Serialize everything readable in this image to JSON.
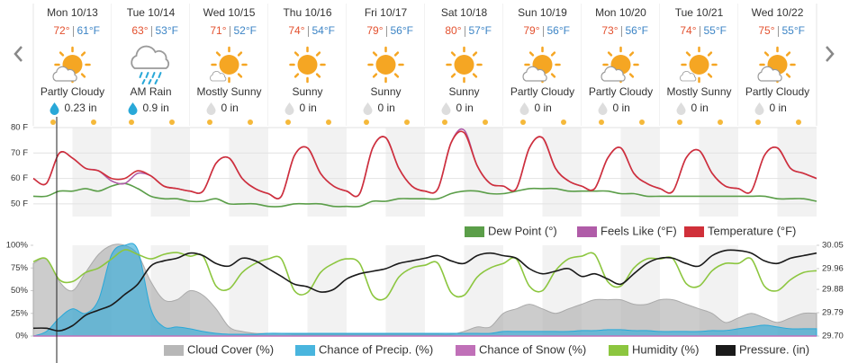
{
  "forecast": [
    {
      "day": "Mon 10/13",
      "high": "72°",
      "low": "61°F",
      "condition": "Partly Cloudy",
      "precip": "0.23 in"
    },
    {
      "day": "Tue 10/14",
      "high": "63°",
      "low": "53°F",
      "condition": "AM Rain",
      "precip": "0.9 in"
    },
    {
      "day": "Wed 10/15",
      "high": "71°",
      "low": "52°F",
      "condition": "Mostly Sunny",
      "precip": "0 in"
    },
    {
      "day": "Thu 10/16",
      "high": "74°",
      "low": "54°F",
      "condition": "Sunny",
      "precip": "0 in"
    },
    {
      "day": "Fri 10/17",
      "high": "79°",
      "low": "56°F",
      "condition": "Sunny",
      "precip": "0 in"
    },
    {
      "day": "Sat 10/18",
      "high": "80°",
      "low": "57°F",
      "condition": "Sunny",
      "precip": "0 in"
    },
    {
      "day": "Sun 10/19",
      "high": "79°",
      "low": "56°F",
      "condition": "Partly Cloudy",
      "precip": "0 in"
    },
    {
      "day": "Mon 10/20",
      "high": "73°",
      "low": "56°F",
      "condition": "Partly Cloudy",
      "precip": "0 in"
    },
    {
      "day": "Tue 10/21",
      "high": "74°",
      "low": "55°F",
      "condition": "Mostly Sunny",
      "precip": "0 in"
    },
    {
      "day": "Wed 10/22",
      "high": "75°",
      "low": "55°F",
      "condition": "Partly Cloudy",
      "precip": "0 in"
    }
  ],
  "chart_data": [
    {
      "type": "line",
      "ylim": [
        45,
        80
      ],
      "grid": true,
      "yticks": [
        {
          "value": 80,
          "label": "80 F"
        },
        {
          "value": 70,
          "label": "70 F"
        },
        {
          "value": 60,
          "label": "60 F"
        },
        {
          "value": 50,
          "label": "50 F"
        }
      ],
      "series": [
        {
          "name": "Dew Point (°)",
          "color": "#5b9e49",
          "values": [
            53,
            53,
            55,
            55,
            56,
            55,
            57,
            58,
            56,
            53,
            52,
            52,
            51,
            51,
            52,
            50,
            50,
            50,
            49,
            49,
            50,
            50,
            50,
            49,
            49,
            49,
            51,
            51,
            52,
            52,
            52,
            52,
            54,
            55,
            55,
            54,
            54,
            55,
            56,
            56,
            56,
            55,
            55,
            55,
            55,
            54,
            54,
            53,
            53,
            53,
            53,
            53,
            53,
            53,
            53,
            53,
            53,
            52,
            52,
            52,
            51
          ]
        },
        {
          "name": "Feels Like (°F)",
          "color": "#b05ca8",
          "values": [
            60,
            58,
            70,
            68,
            64,
            63,
            59,
            58,
            62,
            61,
            57,
            56,
            55,
            55,
            66,
            68,
            60,
            56,
            54,
            53,
            69,
            72,
            62,
            57,
            55,
            54,
            72,
            76,
            64,
            57,
            55,
            56,
            74,
            79,
            65,
            58,
            57,
            56,
            72,
            76,
            64,
            59,
            57,
            56,
            68,
            72,
            62,
            58,
            56,
            55,
            68,
            71,
            62,
            57,
            56,
            55,
            69,
            72,
            64,
            62,
            60
          ]
        },
        {
          "name": "Temperature (°F)",
          "color": "#d0303a",
          "values": [
            60,
            58,
            70,
            68,
            64,
            63,
            60,
            60,
            63,
            61,
            57,
            56,
            55,
            55,
            66,
            68,
            60,
            56,
            54,
            53,
            69,
            72,
            62,
            57,
            55,
            54,
            72,
            76,
            64,
            57,
            55,
            56,
            74,
            78,
            65,
            58,
            57,
            56,
            72,
            76,
            64,
            59,
            57,
            56,
            68,
            72,
            62,
            58,
            56,
            55,
            68,
            71,
            62,
            57,
            56,
            55,
            69,
            72,
            64,
            62,
            60
          ]
        }
      ]
    },
    {
      "type": "line",
      "ylim": [
        0,
        100
      ],
      "y2lim": [
        29.7,
        30.05
      ],
      "yticks": [
        {
          "value": 100,
          "label": "100%"
        },
        {
          "value": 75,
          "label": "75%"
        },
        {
          "value": 50,
          "label": "50%"
        },
        {
          "value": 25,
          "label": "25%"
        },
        {
          "value": 0,
          "label": "0%"
        }
      ],
      "y2ticks": [
        30.05,
        29.96,
        29.88,
        29.79,
        {
          "value": 29.7,
          "label": "29.70"
        }
      ],
      "series": [
        {
          "name": "Cloud Cover (%)",
          "color": "#aaaaaa",
          "area": true,
          "values": [
            80,
            85,
            60,
            50,
            70,
            90,
            100,
            100,
            90,
            60,
            40,
            40,
            50,
            45,
            30,
            10,
            5,
            3,
            3,
            3,
            2,
            2,
            2,
            2,
            2,
            2,
            2,
            2,
            2,
            2,
            2,
            2,
            2,
            5,
            10,
            10,
            25,
            30,
            35,
            30,
            25,
            30,
            35,
            40,
            40,
            40,
            35,
            35,
            40,
            40,
            35,
            30,
            25,
            15,
            20,
            25,
            20,
            15,
            20,
            25,
            25
          ]
        },
        {
          "name": "Chance of Precip. (%)",
          "color": "#29a8d8",
          "area": true,
          "values": [
            0,
            5,
            20,
            30,
            25,
            40,
            90,
            100,
            95,
            30,
            10,
            10,
            8,
            5,
            3,
            2,
            2,
            2,
            3,
            3,
            3,
            3,
            3,
            3,
            3,
            3,
            3,
            3,
            3,
            3,
            3,
            3,
            3,
            3,
            3,
            3,
            5,
            5,
            5,
            5,
            5,
            5,
            6,
            6,
            7,
            7,
            6,
            6,
            5,
            5,
            5,
            5,
            6,
            6,
            8,
            10,
            12,
            10,
            8,
            8,
            8
          ]
        },
        {
          "name": "Chance of Snow (%)",
          "color": "#c070b8",
          "values": [
            0,
            0,
            0,
            0,
            0,
            0,
            0,
            0,
            0,
            0,
            0,
            0,
            0,
            0,
            0,
            0,
            0,
            0,
            0,
            0,
            0,
            0,
            0,
            0,
            0,
            0,
            0,
            0,
            0,
            0,
            0,
            0,
            0,
            0,
            0,
            0,
            0,
            0,
            0,
            0,
            0,
            0,
            0,
            0,
            0,
            0,
            0,
            0,
            0,
            0,
            0,
            0,
            0,
            0,
            0,
            0,
            0,
            0,
            0,
            0,
            0
          ]
        },
        {
          "name": "Humidity (%)",
          "color": "#8cc63f",
          "values": [
            82,
            85,
            62,
            60,
            70,
            75,
            85,
            95,
            90,
            85,
            90,
            92,
            88,
            88,
            55,
            52,
            70,
            80,
            85,
            85,
            50,
            48,
            70,
            80,
            85,
            80,
            45,
            42,
            65,
            75,
            78,
            80,
            48,
            45,
            65,
            75,
            80,
            85,
            55,
            50,
            72,
            85,
            88,
            90,
            60,
            55,
            75,
            85,
            85,
            85,
            58,
            55,
            72,
            80,
            80,
            85,
            55,
            50,
            62,
            70,
            72
          ]
        },
        {
          "name": "Pressure. (in)",
          "color": "#1a1a1a",
          "axis": "y2",
          "values": [
            29.73,
            29.73,
            29.72,
            29.74,
            29.78,
            29.8,
            29.82,
            29.86,
            29.9,
            29.97,
            29.99,
            30.0,
            30.02,
            30.01,
            29.98,
            29.97,
            30.0,
            29.99,
            29.96,
            29.93,
            29.9,
            29.89,
            29.87,
            29.88,
            29.92,
            29.94,
            29.95,
            29.96,
            29.98,
            29.99,
            30.0,
            30.01,
            29.99,
            29.98,
            30.01,
            30.02,
            30.01,
            30.0,
            29.96,
            29.94,
            29.95,
            29.96,
            29.93,
            29.94,
            29.92,
            29.9,
            29.94,
            29.98,
            30.0,
            30.0,
            29.98,
            29.97,
            30.01,
            30.03,
            30.03,
            30.02,
            29.99,
            29.98,
            30.0,
            30.01,
            30.02
          ]
        }
      ]
    }
  ]
}
